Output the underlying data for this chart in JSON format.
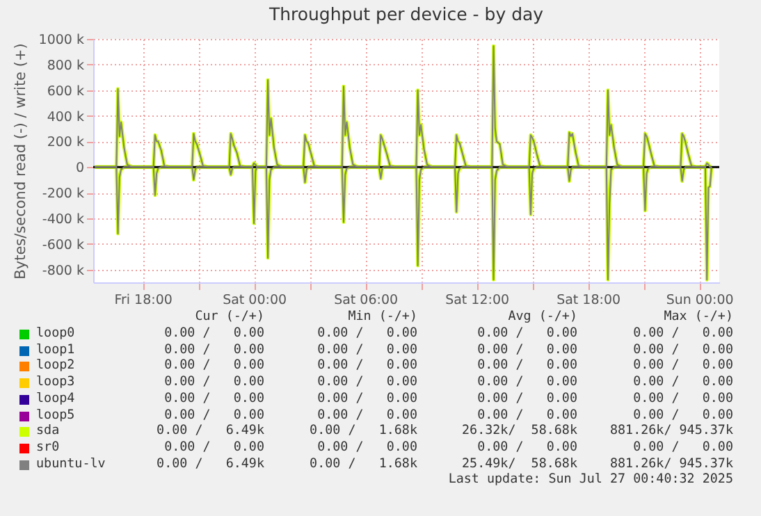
{
  "chart_data": {
    "type": "line",
    "title": "Throughput per device - by day",
    "ylabel": "Bytes/second read (-) / write (+)",
    "xlim": [
      "2025-07-25T15:20",
      "2025-07-27T01:05"
    ],
    "xticks": [
      {
        "value": "2025-07-25T18:00",
        "label": "Fri 18:00"
      },
      {
        "value": "2025-07-25T21:00",
        "label": null
      },
      {
        "value": "2025-07-26T00:00",
        "label": "Sat 00:00"
      },
      {
        "value": "2025-07-26T03:00",
        "label": null
      },
      {
        "value": "2025-07-26T06:00",
        "label": "Sat 06:00"
      },
      {
        "value": "2025-07-26T09:00",
        "label": null
      },
      {
        "value": "2025-07-26T12:00",
        "label": "Sat 12:00"
      },
      {
        "value": "2025-07-26T15:00",
        "label": null
      },
      {
        "value": "2025-07-26T18:00",
        "label": "Sat 18:00"
      },
      {
        "value": "2025-07-26T21:00",
        "label": null
      },
      {
        "value": "2025-07-27T00:00",
        "label": "Sun 00:00"
      }
    ],
    "ylim": [
      -900000,
      1000000
    ],
    "yticks": [
      {
        "value": -800000,
        "label": "-800 k"
      },
      {
        "value": -600000,
        "label": "-600 k"
      },
      {
        "value": -400000,
        "label": "-400 k"
      },
      {
        "value": -200000,
        "label": "-200 k"
      },
      0,
      {
        "value": 200000,
        "label": "200 k"
      },
      {
        "value": 400000,
        "label": "400 k"
      },
      {
        "value": 600000,
        "label": "600 k"
      },
      {
        "value": 800000,
        "label": "800 k"
      },
      {
        "value": 1000000,
        "label": "1000 k"
      }
    ],
    "grid": true,
    "legend": "bottom",
    "ref_lines": [
      {
        "axis": "y",
        "value": 0,
        "color": "#000000"
      }
    ],
    "x": [
      "2025-07-25T15:25",
      "2025-07-25T16:35",
      "2025-07-25T16:40",
      "2025-07-25T16:45",
      "2025-07-25T16:50",
      "2025-07-25T17:00",
      "2025-07-25T17:10",
      "2025-07-25T17:25",
      "2025-07-25T18:35",
      "2025-07-25T18:40",
      "2025-07-25T18:45",
      "2025-07-25T18:50",
      "2025-07-25T19:00",
      "2025-07-25T19:10",
      "2025-07-25T19:25",
      "2025-07-25T20:40",
      "2025-07-25T20:45",
      "2025-07-25T20:50",
      "2025-07-25T20:55",
      "2025-07-25T21:05",
      "2025-07-25T21:15",
      "2025-07-25T21:30",
      "2025-07-25T22:40",
      "2025-07-25T22:45",
      "2025-07-25T22:50",
      "2025-07-25T22:55",
      "2025-07-25T23:05",
      "2025-07-25T23:15",
      "2025-07-25T23:30",
      "2025-07-25T23:55",
      "2025-07-26T00:00",
      "2025-07-26T00:05",
      "2025-07-26T00:10",
      "2025-07-26T00:20",
      "2025-07-26T00:30",
      "2025-07-26T00:40",
      "2025-07-26T00:45",
      "2025-07-26T00:50",
      "2025-07-26T00:55",
      "2025-07-26T01:05",
      "2025-07-26T01:15",
      "2025-07-26T01:30",
      "2025-07-26T02:40",
      "2025-07-26T02:45",
      "2025-07-26T02:50",
      "2025-07-26T02:55",
      "2025-07-26T03:05",
      "2025-07-26T03:15",
      "2025-07-26T03:30",
      "2025-07-26T04:45",
      "2025-07-26T04:50",
      "2025-07-26T04:55",
      "2025-07-26T05:00",
      "2025-07-26T05:10",
      "2025-07-26T05:20",
      "2025-07-26T05:35",
      "2025-07-26T06:45",
      "2025-07-26T06:50",
      "2025-07-26T06:55",
      "2025-07-26T07:00",
      "2025-07-26T07:10",
      "2025-07-26T07:20",
      "2025-07-26T07:35",
      "2025-07-26T08:45",
      "2025-07-26T08:50",
      "2025-07-26T08:55",
      "2025-07-26T09:00",
      "2025-07-26T09:10",
      "2025-07-26T09:20",
      "2025-07-26T09:35",
      "2025-07-26T10:50",
      "2025-07-26T10:55",
      "2025-07-26T11:00",
      "2025-07-26T11:05",
      "2025-07-26T11:15",
      "2025-07-26T11:25",
      "2025-07-26T11:40",
      "2025-07-26T12:50",
      "2025-07-26T12:55",
      "2025-07-26T13:00",
      "2025-07-26T13:05",
      "2025-07-26T13:15",
      "2025-07-26T13:25",
      "2025-07-26T13:40",
      "2025-07-26T14:50",
      "2025-07-26T14:55",
      "2025-07-26T15:00",
      "2025-07-26T15:05",
      "2025-07-26T15:15",
      "2025-07-26T15:25",
      "2025-07-26T15:40",
      "2025-07-26T16:55",
      "2025-07-26T17:00",
      "2025-07-26T17:05",
      "2025-07-26T17:10",
      "2025-07-26T17:20",
      "2025-07-26T17:30",
      "2025-07-26T17:45",
      "2025-07-26T19:00",
      "2025-07-26T19:05",
      "2025-07-26T19:10",
      "2025-07-26T19:15",
      "2025-07-26T19:25",
      "2025-07-26T19:35",
      "2025-07-26T19:50",
      "2025-07-26T21:00",
      "2025-07-26T21:05",
      "2025-07-26T21:10",
      "2025-07-26T21:15",
      "2025-07-26T21:25",
      "2025-07-26T21:35",
      "2025-07-26T21:50",
      "2025-07-26T23:00",
      "2025-07-26T23:05",
      "2025-07-26T23:10",
      "2025-07-26T23:15",
      "2025-07-26T23:25",
      "2025-07-26T23:35",
      "2025-07-26T23:50",
      "2025-07-27T00:20",
      "2025-07-27T00:25",
      "2025-07-27T00:30",
      "2025-07-27T00:35",
      "2025-07-27T00:40"
    ],
    "series": [
      {
        "name": "loop0",
        "color": "#00cc00",
        "values": [
          null,
          null,
          null,
          null,
          null,
          null,
          null,
          null,
          null,
          null,
          null,
          null,
          null,
          null,
          null,
          null,
          null,
          null,
          null,
          null,
          null,
          null,
          null,
          null,
          null,
          null,
          null,
          null,
          null,
          null,
          null,
          null,
          null,
          null,
          null,
          null,
          null,
          null,
          null,
          null,
          null,
          null,
          null,
          null,
          null,
          null,
          null,
          null,
          null,
          null,
          null,
          null,
          null,
          null,
          null,
          null,
          null,
          null,
          null,
          null,
          null,
          null,
          null,
          null,
          null,
          null,
          null,
          null,
          null,
          null,
          null,
          null,
          null,
          null,
          null,
          null,
          null,
          null,
          null,
          null,
          null,
          null,
          null,
          null,
          null,
          null,
          null,
          null,
          null,
          null,
          null,
          null,
          null,
          null,
          null,
          null,
          null,
          null,
          null,
          null,
          null,
          null,
          null,
          null,
          null,
          null,
          null,
          null,
          null,
          null,
          null,
          null,
          null,
          null,
          null,
          null,
          null,
          null,
          null,
          null,
          null,
          null,
          null,
          null
        ]
      },
      {
        "name": "loop1",
        "color": "#0066b3",
        "values": [
          null,
          null,
          null,
          null,
          null,
          null,
          null,
          null,
          null,
          null,
          null,
          null,
          null,
          null,
          null,
          null,
          null,
          null,
          null,
          null,
          null,
          null,
          null,
          null,
          null,
          null,
          null,
          null,
          null,
          null,
          null,
          null,
          null,
          null,
          null,
          null,
          null,
          null,
          null,
          null,
          null,
          null,
          null,
          null,
          null,
          null,
          null,
          null,
          null,
          null,
          null,
          null,
          null,
          null,
          null,
          null,
          null,
          null,
          null,
          null,
          null,
          null,
          null,
          null,
          null,
          null,
          null,
          null,
          null,
          null,
          null,
          null,
          null,
          null,
          null,
          null,
          null,
          null,
          null,
          null,
          null,
          null,
          null,
          null,
          null,
          null,
          null,
          null,
          null,
          null,
          null,
          null,
          null,
          null,
          null,
          null,
          null,
          null,
          null,
          null,
          null,
          null,
          null,
          null,
          null,
          null,
          null,
          null,
          null,
          null,
          null,
          null,
          null,
          null,
          null,
          null,
          null,
          null,
          null,
          null,
          null,
          null,
          null,
          null
        ]
      },
      {
        "name": "loop2",
        "color": "#ff8000",
        "values": [
          null,
          null,
          null,
          null,
          null,
          null,
          null,
          null,
          null,
          null,
          null,
          null,
          null,
          null,
          null,
          null,
          null,
          null,
          null,
          null,
          null,
          null,
          null,
          null,
          null,
          null,
          null,
          null,
          null,
          null,
          null,
          null,
          null,
          null,
          null,
          null,
          null,
          null,
          null,
          null,
          null,
          null,
          null,
          null,
          null,
          null,
          null,
          null,
          null,
          null,
          null,
          null,
          null,
          null,
          null,
          null,
          null,
          null,
          null,
          null,
          null,
          null,
          null,
          null,
          null,
          null,
          null,
          null,
          null,
          null,
          null,
          null,
          null,
          null,
          null,
          null,
          null,
          null,
          null,
          null,
          null,
          null,
          null,
          null,
          null,
          null,
          null,
          null,
          null,
          null,
          null,
          null,
          null,
          null,
          null,
          null,
          null,
          null,
          null,
          null,
          null,
          null,
          null,
          null,
          null,
          null,
          null,
          null,
          null,
          null,
          null,
          null,
          null,
          null,
          null,
          null,
          null,
          null,
          null,
          null,
          null,
          null,
          null,
          null
        ]
      },
      {
        "name": "loop3",
        "color": "#ffcc00",
        "values": [
          null,
          null,
          null,
          null,
          null,
          null,
          null,
          null,
          null,
          null,
          null,
          null,
          null,
          null,
          null,
          null,
          null,
          null,
          null,
          null,
          null,
          null,
          null,
          null,
          null,
          null,
          null,
          null,
          null,
          null,
          null,
          null,
          null,
          null,
          null,
          null,
          null,
          null,
          null,
          null,
          null,
          null,
          null,
          null,
          null,
          null,
          null,
          null,
          null,
          null,
          null,
          null,
          null,
          null,
          null,
          null,
          null,
          null,
          null,
          null,
          null,
          null,
          null,
          null,
          null,
          null,
          null,
          null,
          null,
          null,
          null,
          null,
          null,
          null,
          null,
          null,
          null,
          null,
          null,
          null,
          null,
          null,
          null,
          null,
          null,
          null,
          null,
          null,
          null,
          null,
          null,
          null,
          null,
          null,
          null,
          null,
          null,
          null,
          null,
          null,
          null,
          null,
          null,
          null,
          null,
          null,
          null,
          null,
          null,
          null,
          null,
          null,
          null,
          null,
          null,
          null,
          null,
          null,
          null,
          null,
          null,
          null,
          null,
          null
        ]
      },
      {
        "name": "loop4",
        "color": "#330099",
        "values": [
          null,
          null,
          null,
          null,
          null,
          null,
          null,
          null,
          null,
          null,
          null,
          null,
          null,
          null,
          null,
          null,
          null,
          null,
          null,
          null,
          null,
          null,
          null,
          null,
          null,
          null,
          null,
          null,
          null,
          null,
          null,
          null,
          null,
          null,
          null,
          null,
          null,
          null,
          null,
          null,
          null,
          null,
          null,
          null,
          null,
          null,
          null,
          null,
          null,
          null,
          null,
          null,
          null,
          null,
          null,
          null,
          null,
          null,
          null,
          null,
          null,
          null,
          null,
          null,
          null,
          null,
          null,
          null,
          null,
          null,
          null,
          null,
          null,
          null,
          null,
          null,
          null,
          null,
          null,
          null,
          null,
          null,
          null,
          null,
          null,
          null,
          null,
          null,
          null,
          null,
          null,
          null,
          null,
          null,
          null,
          null,
          null,
          null,
          null,
          null,
          null,
          null,
          null,
          null,
          null,
          null,
          null,
          null,
          null,
          null,
          null,
          null,
          null,
          null,
          null,
          null,
          null,
          null,
          null,
          null,
          null,
          null,
          null,
          null
        ]
      },
      {
        "name": "loop5",
        "color": "#990099",
        "values": [
          null,
          null,
          null,
          null,
          null,
          null,
          null,
          null,
          null,
          null,
          null,
          null,
          null,
          null,
          null,
          null,
          null,
          null,
          null,
          null,
          null,
          null,
          null,
          null,
          null,
          null,
          null,
          null,
          null,
          null,
          null,
          null,
          null,
          null,
          null,
          null,
          null,
          null,
          null,
          null,
          null,
          null,
          null,
          null,
          null,
          null,
          null,
          null,
          null,
          null,
          null,
          null,
          null,
          null,
          null,
          null,
          null,
          null,
          null,
          null,
          null,
          null,
          null,
          null,
          null,
          null,
          null,
          null,
          null,
          null,
          null,
          null,
          null,
          null,
          null,
          null,
          null,
          null,
          null,
          null,
          null,
          null,
          null,
          null,
          null,
          null,
          null,
          null,
          null,
          null,
          null,
          null,
          null,
          null,
          null,
          null,
          null,
          null,
          null,
          null,
          null,
          null,
          null,
          null,
          null,
          null,
          null,
          null,
          null,
          null,
          null,
          null,
          null,
          null,
          null,
          null,
          null,
          null,
          null,
          null,
          null,
          null,
          null,
          null
        ]
      },
      {
        "name": "sda",
        "color": "#ccff00",
        "values": [
          0,
          0,
          610000,
          240000,
          350000,
          150000,
          20000,
          0,
          0,
          250000,
          200000,
          200000,
          130000,
          10000,
          0,
          0,
          260000,
          200000,
          180000,
          100000,
          10000,
          0,
          0,
          260000,
          220000,
          170000,
          110000,
          10000,
          0,
          0,
          30000,
          20000,
          0,
          0,
          0,
          0,
          680000,
          250000,
          380000,
          150000,
          20000,
          0,
          0,
          250000,
          200000,
          190000,
          100000,
          10000,
          0,
          0,
          630000,
          250000,
          350000,
          150000,
          20000,
          0,
          0,
          250000,
          220000,
          180000,
          100000,
          10000,
          0,
          0,
          600000,
          250000,
          330000,
          140000,
          20000,
          0,
          0,
          250000,
          200000,
          190000,
          100000,
          10000,
          0,
          0,
          945000,
          300000,
          200000,
          180000,
          20000,
          0,
          0,
          250000,
          230000,
          200000,
          100000,
          10000,
          0,
          0,
          270000,
          240000,
          260000,
          120000,
          10000,
          0,
          0,
          600000,
          250000,
          330000,
          150000,
          20000,
          0,
          0,
          260000,
          240000,
          200000,
          100000,
          10000,
          0,
          0,
          260000,
          240000,
          200000,
          100000,
          10000,
          0,
          0,
          30000,
          20000,
          0,
          0
        ]
      },
      {
        "color": "#ccff00",
        "values": [
          0,
          0,
          -520000,
          -80000,
          -20000,
          0,
          0,
          0,
          0,
          -220000,
          -50000,
          -10000,
          0,
          0,
          0,
          0,
          -100000,
          -20000,
          0,
          0,
          0,
          0,
          0,
          -60000,
          -10000,
          0,
          0,
          0,
          0,
          0,
          -440000,
          -30000,
          0,
          0,
          0,
          0,
          -710000,
          -100000,
          -20000,
          0,
          0,
          0,
          0,
          -120000,
          -20000,
          0,
          0,
          0,
          0,
          0,
          -430000,
          -60000,
          -10000,
          0,
          0,
          0,
          0,
          -90000,
          -10000,
          0,
          0,
          0,
          0,
          0,
          -770000,
          -100000,
          -20000,
          0,
          0,
          0,
          0,
          -350000,
          -50000,
          -10000,
          0,
          0,
          0,
          0,
          -880000,
          -100000,
          -30000,
          0,
          0,
          0,
          0,
          -370000,
          -50000,
          -10000,
          0,
          0,
          0,
          0,
          -110000,
          -20000,
          0,
          0,
          0,
          0,
          0,
          -880000,
          -290000,
          -20000,
          0,
          0,
          0,
          0,
          -340000,
          -50000,
          -10000,
          0,
          0,
          0,
          0,
          -110000,
          -20000,
          0,
          0,
          0,
          0,
          0,
          -880000,
          -160000,
          -150000,
          0
        ]
      },
      {
        "name": "sr0",
        "color": "#ff0000",
        "values": [
          null,
          null,
          null,
          null,
          null,
          null,
          null,
          null,
          null,
          null,
          null,
          null,
          null,
          null,
          null,
          null,
          null,
          null,
          null,
          null,
          null,
          null,
          null,
          null,
          null,
          null,
          null,
          null,
          null,
          null,
          null,
          null,
          null,
          null,
          null,
          null,
          null,
          null,
          null,
          null,
          null,
          null,
          null,
          null,
          null,
          null,
          null,
          null,
          null,
          null,
          null,
          null,
          null,
          null,
          null,
          null,
          null,
          null,
          null,
          null,
          null,
          null,
          null,
          null,
          null,
          null,
          null,
          null,
          null,
          null,
          null,
          null,
          null,
          null,
          null,
          null,
          null,
          null,
          null,
          null,
          null,
          null,
          null,
          null,
          null,
          null,
          null,
          null,
          null,
          null,
          null,
          null,
          null,
          null,
          null,
          null,
          null,
          null,
          null,
          null,
          null,
          null,
          null,
          null,
          null,
          null,
          null,
          null,
          null,
          null,
          null,
          null,
          null,
          null,
          null,
          null,
          null,
          null,
          null,
          null,
          null,
          null,
          null,
          null
        ]
      },
      {
        "name": "ubuntu-lv",
        "color": "#808080",
        "values": [
          0,
          0,
          610000,
          240000,
          350000,
          150000,
          20000,
          0,
          0,
          250000,
          200000,
          200000,
          130000,
          10000,
          0,
          0,
          260000,
          200000,
          180000,
          100000,
          10000,
          0,
          0,
          260000,
          220000,
          170000,
          110000,
          10000,
          0,
          0,
          30000,
          20000,
          0,
          0,
          0,
          0,
          680000,
          250000,
          380000,
          150000,
          20000,
          0,
          0,
          250000,
          200000,
          190000,
          100000,
          10000,
          0,
          0,
          630000,
          250000,
          350000,
          150000,
          20000,
          0,
          0,
          250000,
          220000,
          180000,
          100000,
          10000,
          0,
          0,
          600000,
          250000,
          330000,
          140000,
          20000,
          0,
          0,
          250000,
          200000,
          190000,
          100000,
          10000,
          0,
          0,
          945000,
          300000,
          200000,
          180000,
          20000,
          0,
          0,
          250000,
          230000,
          200000,
          100000,
          10000,
          0,
          0,
          270000,
          240000,
          260000,
          120000,
          10000,
          0,
          0,
          600000,
          250000,
          330000,
          150000,
          20000,
          0,
          0,
          260000,
          240000,
          200000,
          100000,
          10000,
          0,
          0,
          260000,
          240000,
          200000,
          100000,
          10000,
          0,
          0,
          30000,
          20000,
          0,
          0
        ]
      },
      {
        "color": "#808080",
        "values": [
          0,
          0,
          -520000,
          -80000,
          -20000,
          0,
          0,
          0,
          0,
          -220000,
          -50000,
          -10000,
          0,
          0,
          0,
          0,
          -100000,
          -20000,
          0,
          0,
          0,
          0,
          0,
          -60000,
          -10000,
          0,
          0,
          0,
          0,
          0,
          -440000,
          -30000,
          0,
          0,
          0,
          0,
          -710000,
          -100000,
          -20000,
          0,
          0,
          0,
          0,
          -120000,
          -20000,
          0,
          0,
          0,
          0,
          0,
          -430000,
          -60000,
          -10000,
          0,
          0,
          0,
          0,
          -90000,
          -10000,
          0,
          0,
          0,
          0,
          0,
          -770000,
          -100000,
          -20000,
          0,
          0,
          0,
          0,
          -350000,
          -50000,
          -10000,
          0,
          0,
          0,
          0,
          -880000,
          -100000,
          -30000,
          0,
          0,
          0,
          0,
          -370000,
          -50000,
          -10000,
          0,
          0,
          0,
          0,
          -110000,
          -20000,
          0,
          0,
          0,
          0,
          0,
          -880000,
          -290000,
          -20000,
          0,
          0,
          0,
          0,
          -340000,
          -50000,
          -10000,
          0,
          0,
          0,
          0,
          -110000,
          -20000,
          0,
          0,
          0,
          0,
          0,
          -880000,
          -160000,
          -150000,
          0
        ]
      }
    ],
    "annotations": [
      "Cur (-/+)",
      "Min (-/+)",
      "Avg (-/+)",
      "Max (-/+)",
      "0.00 /   0.00",
      "0.00 /   0.00",
      "0.00 /   0.00",
      "0.00 /   0.00",
      "0.00 /   0.00",
      "0.00 /   0.00",
      "0.00 /   0.00",
      "0.00 /   0.00",
      "0.00 /   0.00",
      "0.00 /   0.00",
      "0.00 /   0.00",
      "0.00 /   0.00",
      "0.00 /   0.00",
      "0.00 /   0.00",
      "0.00 /   0.00",
      "0.00 /   0.00",
      "0.00 /   0.00",
      "0.00 /   0.00",
      "0.00 /   0.00",
      "0.00 /   0.00",
      "0.00 /   0.00",
      "0.00 /   0.00",
      "0.00 /   0.00",
      "0.00 /   0.00",
      "0.00 /   6.49k",
      "0.00 /   1.68k",
      "26.32k/  58.68k",
      "881.26k/ 945.37k",
      "0.00 /   0.00",
      "0.00 /   0.00",
      "0.00 /   0.00",
      "0.00 /   0.00",
      "0.00 /   6.49k",
      "0.00 /   1.68k",
      "25.49k/  58.68k",
      "881.26k/ 945.37k",
      "Last update: Sun Jul 27 00:40:32 2025"
    ]
  }
}
